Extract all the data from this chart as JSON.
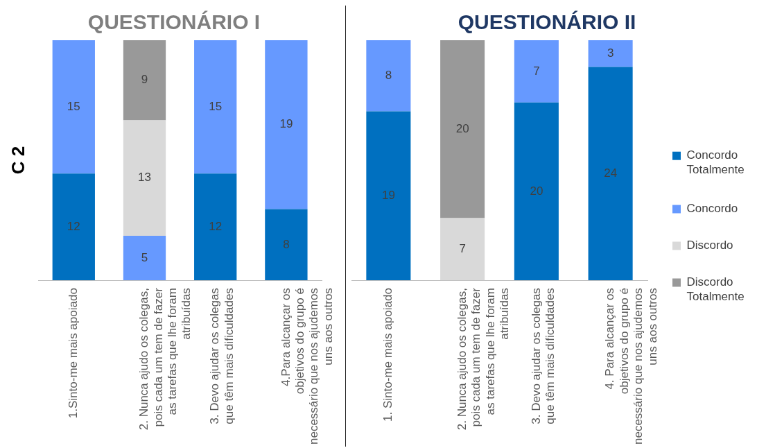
{
  "chart_data": [
    {
      "type": "bar",
      "title": "QUESTIONÁRIO I",
      "ylabel": "C 2",
      "stacked": true,
      "data_labels": true,
      "grid": false,
      "legend": false,
      "tick_labels": "x",
      "ylim": [
        0,
        27
      ],
      "categories": [
        "1.Sinto-me mais apoiado",
        "2. Nunca ajudo os colegas, pois cada um tem de fazer as tarefas que lhe foram atribuídas",
        "3. Devo ajudar os colegas que têm mais dificuldades",
        "4.Para alcançar os objetivos do grupo é necessário que nos ajudemos uns aos outros"
      ],
      "series": [
        {
          "color": "#0070c0",
          "values": [
            12,
            null,
            12,
            8
          ]
        },
        {
          "color": "#6699ff",
          "values": [
            15,
            5,
            15,
            19
          ]
        },
        {
          "color": "#d9d9d9",
          "values": [
            null,
            13,
            null,
            null
          ]
        },
        {
          "color": "#999999",
          "values": [
            null,
            9,
            null,
            null
          ]
        }
      ]
    },
    {
      "type": "bar",
      "title": "QUESTIONÁRIO II",
      "stacked": true,
      "data_labels": true,
      "grid": false,
      "legend": "right",
      "tick_labels": "x",
      "ylim": [
        0,
        27
      ],
      "categories": [
        "1. Sinto-me mais apoiado",
        "2. Nunca ajudo os colegas, pois cada um tem de fazer as tarefas que lhe foram atribuídas",
        "3. Devo ajudar os colegas que têm mais dificuldades",
        "4. Para alcançar os objetivos do grupo é necessário que nos ajudemos uns aos outros"
      ],
      "series": [
        {
          "name": "Concordo Totalmente",
          "color": "#0070c0",
          "values": [
            19,
            null,
            20,
            24
          ]
        },
        {
          "name": "Concordo",
          "color": "#6699ff",
          "values": [
            8,
            null,
            7,
            3
          ]
        },
        {
          "name": "Discordo",
          "color": "#d9d9d9",
          "values": [
            null,
            7,
            null,
            null
          ]
        },
        {
          "name": "Discordo Totalmente",
          "color": "#999999",
          "values": [
            null,
            20,
            null,
            null
          ]
        }
      ]
    }
  ]
}
